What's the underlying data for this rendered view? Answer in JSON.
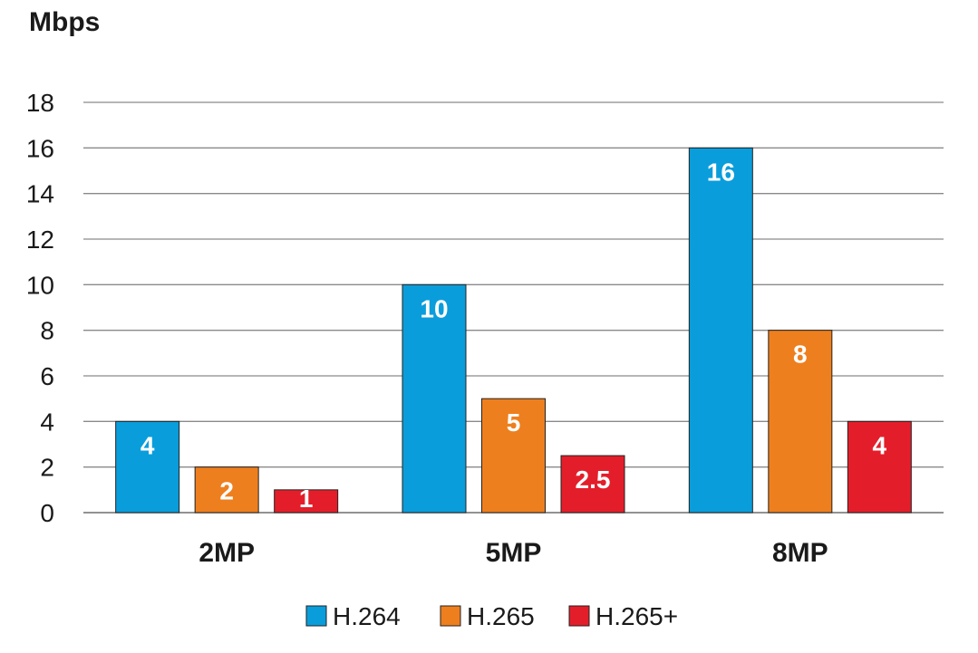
{
  "chart_data": {
    "type": "bar",
    "ylabel": "Mbps",
    "ylim": [
      0,
      18
    ],
    "yticks": [
      0,
      2,
      4,
      6,
      8,
      10,
      12,
      14,
      16,
      18
    ],
    "categories": [
      "2MP",
      "5MP",
      "8MP"
    ],
    "series": [
      {
        "name": "H.264",
        "color": "#0a9ddb",
        "values": [
          4,
          10,
          16
        ],
        "labels": [
          "4",
          "10",
          "16"
        ]
      },
      {
        "name": "H.265",
        "color": "#ee7f1e",
        "values": [
          2,
          5,
          8
        ],
        "labels": [
          "2",
          "5",
          "8"
        ]
      },
      {
        "name": "H.265+",
        "color": "#e31e2a",
        "values": [
          1,
          2.5,
          4
        ],
        "labels": [
          "1",
          "2.5",
          "4"
        ]
      }
    ],
    "grid": true,
    "legend_position": "bottom"
  }
}
